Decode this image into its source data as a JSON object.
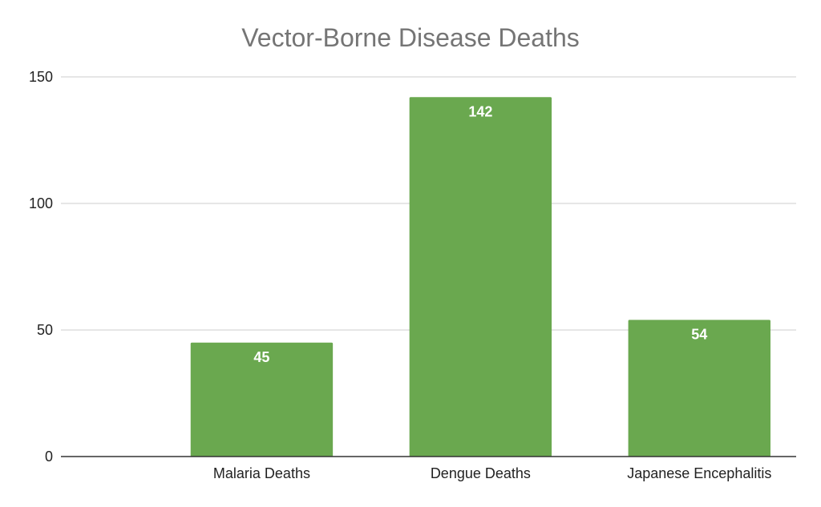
{
  "chart_data": {
    "type": "bar",
    "title": "Vector-Borne Disease Deaths",
    "xlabel": "",
    "ylabel": "",
    "categories": [
      "Malaria Deaths",
      "Dengue Deaths",
      "Japanese Encephalitis"
    ],
    "values": [
      45,
      142,
      54
    ],
    "data_labels": [
      "45",
      "142",
      "54"
    ],
    "ylim": [
      0,
      150
    ],
    "yticks": [
      0,
      50,
      100,
      150
    ],
    "ytick_labels": [
      "0",
      "50",
      "100",
      "150"
    ],
    "grid": true,
    "legend": "none",
    "colors": {
      "bar": "#6aa84f",
      "grid": "#cccccc",
      "axis": "#333333",
      "title": "#757575"
    }
  }
}
